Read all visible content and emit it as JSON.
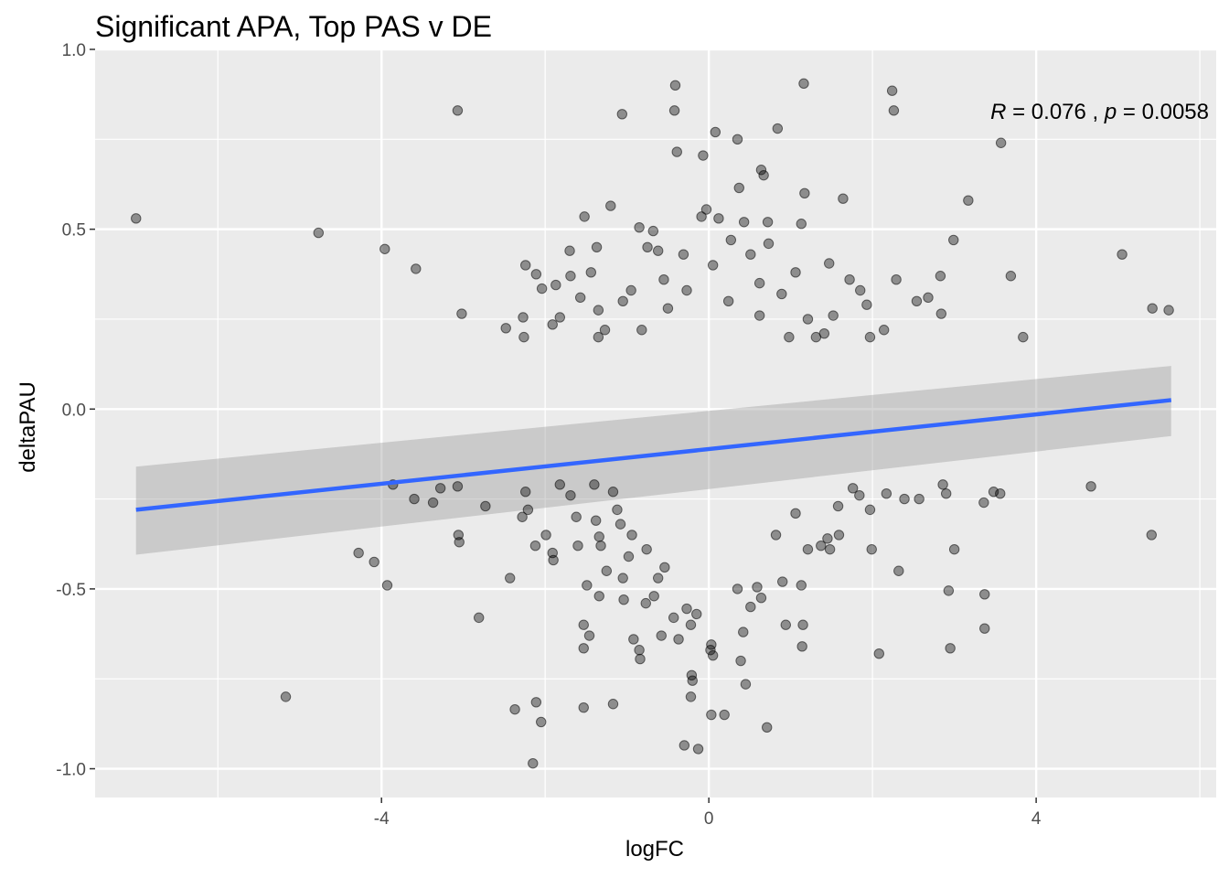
{
  "chart_data": {
    "type": "scatter",
    "title": "Significant APA, Top PAS v DE",
    "xlabel": "logFC",
    "ylabel": "deltaPAU",
    "xlim": [
      -7.5,
      6.2
    ],
    "ylim": [
      -1.08,
      1.0
    ],
    "x_ticks": [
      -4,
      0,
      4
    ],
    "x_tick_labels": [
      "-4",
      "0",
      "4"
    ],
    "y_ticks": [
      -1.0,
      -0.5,
      0.0,
      0.5,
      1.0
    ],
    "y_tick_labels": [
      "-1.0",
      "-0.5",
      "0.0",
      "0.5",
      "1.0"
    ],
    "grid": true,
    "panel_background": "#ebebeb",
    "point_color": "#000000",
    "point_alpha": 0.4,
    "fit": {
      "method": "linear regression with confidence band",
      "color": "#3366ff",
      "band_color": "#999999",
      "x_range": [
        -7.0,
        5.65
      ],
      "y_at_start": -0.28,
      "y_at_end": 0.025,
      "band_at_start": [
        -0.405,
        -0.16
      ],
      "band_at_end": [
        -0.075,
        0.12
      ]
    },
    "annotation": {
      "r_symbol": "R",
      "r_text": " = 0.076 , ",
      "p_symbol": "p",
      "p_text": " = 0.0058"
    },
    "points": [
      [
        -7.0,
        0.53
      ],
      [
        -4.77,
        0.49
      ],
      [
        -3.96,
        0.445
      ],
      [
        -3.58,
        0.39
      ],
      [
        -3.02,
        0.265
      ],
      [
        -3.07,
        0.83
      ],
      [
        -1.06,
        0.82
      ],
      [
        -0.41,
        0.9
      ],
      [
        -0.42,
        0.83
      ],
      [
        1.16,
        0.905
      ],
      [
        2.24,
        0.885
      ],
      [
        2.26,
        0.83
      ],
      [
        3.57,
        0.74
      ],
      [
        0.08,
        0.77
      ],
      [
        0.35,
        0.75
      ],
      [
        0.84,
        0.78
      ],
      [
        -0.39,
        0.715
      ],
      [
        -0.07,
        0.705
      ],
      [
        0.64,
        0.665
      ],
      [
        0.67,
        0.65
      ],
      [
        0.37,
        0.615
      ],
      [
        1.17,
        0.6
      ],
      [
        3.17,
        0.58
      ],
      [
        1.64,
        0.585
      ],
      [
        -1.2,
        0.565
      ],
      [
        -0.03,
        0.555
      ],
      [
        -0.09,
        0.535
      ],
      [
        0.12,
        0.53
      ],
      [
        -1.52,
        0.535
      ],
      [
        -0.85,
        0.505
      ],
      [
        -0.68,
        0.495
      ],
      [
        0.43,
        0.52
      ],
      [
        0.72,
        0.52
      ],
      [
        1.13,
        0.515
      ],
      [
        2.99,
        0.47
      ],
      [
        5.05,
        0.43
      ],
      [
        3.69,
        0.37
      ],
      [
        5.42,
        0.28
      ],
      [
        5.62,
        0.275
      ],
      [
        3.84,
        0.2
      ],
      [
        2.29,
        0.36
      ],
      [
        2.83,
        0.37
      ],
      [
        2.84,
        0.265
      ],
      [
        2.68,
        0.31
      ],
      [
        2.54,
        0.3
      ],
      [
        2.14,
        0.22
      ],
      [
        1.97,
        0.2
      ],
      [
        1.93,
        0.29
      ],
      [
        1.52,
        0.26
      ],
      [
        1.47,
        0.405
      ],
      [
        1.72,
        0.36
      ],
      [
        1.85,
        0.33
      ],
      [
        1.31,
        0.2
      ],
      [
        1.06,
        0.38
      ],
      [
        -1.7,
        0.44
      ],
      [
        -2.24,
        0.4
      ],
      [
        -2.11,
        0.375
      ],
      [
        -2.04,
        0.335
      ],
      [
        -2.48,
        0.225
      ],
      [
        -2.27,
        0.255
      ],
      [
        -2.26,
        0.2
      ],
      [
        -1.87,
        0.345
      ],
      [
        -1.82,
        0.255
      ],
      [
        -1.91,
        0.235
      ],
      [
        -1.69,
        0.37
      ],
      [
        -1.57,
        0.31
      ],
      [
        -1.44,
        0.38
      ],
      [
        -1.37,
        0.45
      ],
      [
        -1.35,
        0.2
      ],
      [
        -1.27,
        0.22
      ],
      [
        -1.35,
        0.275
      ],
      [
        -1.05,
        0.3
      ],
      [
        -0.95,
        0.33
      ],
      [
        -0.75,
        0.45
      ],
      [
        -0.62,
        0.44
      ],
      [
        -0.55,
        0.36
      ],
      [
        -0.31,
        0.43
      ],
      [
        0.05,
        0.4
      ],
      [
        0.27,
        0.47
      ],
      [
        0.51,
        0.43
      ],
      [
        0.73,
        0.46
      ],
      [
        0.62,
        0.35
      ],
      [
        0.89,
        0.32
      ],
      [
        -0.82,
        0.22
      ],
      [
        -0.5,
        0.28
      ],
      [
        -0.27,
        0.33
      ],
      [
        0.24,
        0.3
      ],
      [
        0.62,
        0.26
      ],
      [
        0.98,
        0.2
      ],
      [
        1.21,
        0.25
      ],
      [
        1.41,
        0.21
      ],
      [
        -5.17,
        -0.8
      ],
      [
        -4.28,
        -0.4
      ],
      [
        -4.09,
        -0.425
      ],
      [
        -3.93,
        -0.49
      ],
      [
        -3.86,
        -0.21
      ],
      [
        -3.6,
        -0.25
      ],
      [
        -3.37,
        -0.26
      ],
      [
        -3.28,
        -0.22
      ],
      [
        -3.06,
        -0.35
      ],
      [
        -3.05,
        -0.37
      ],
      [
        -3.07,
        -0.215
      ],
      [
        -2.73,
        -0.27
      ],
      [
        -2.81,
        -0.58
      ],
      [
        -2.43,
        -0.47
      ],
      [
        -2.37,
        -0.835
      ],
      [
        -2.24,
        -0.23
      ],
      [
        -2.28,
        -0.3
      ],
      [
        -2.21,
        -0.28
      ],
      [
        -2.12,
        -0.38
      ],
      [
        -1.99,
        -0.35
      ],
      [
        -1.91,
        -0.4
      ],
      [
        -1.9,
        -0.42
      ],
      [
        -2.11,
        -0.815
      ],
      [
        -2.05,
        -0.87
      ],
      [
        -2.15,
        -0.985
      ],
      [
        -1.82,
        -0.21
      ],
      [
        -1.69,
        -0.24
      ],
      [
        -1.62,
        -0.3
      ],
      [
        -1.6,
        -0.38
      ],
      [
        -1.49,
        -0.49
      ],
      [
        -1.53,
        -0.6
      ],
      [
        -1.53,
        -0.665
      ],
      [
        -1.46,
        -0.63
      ],
      [
        -1.53,
        -0.83
      ],
      [
        -1.4,
        -0.21
      ],
      [
        -1.38,
        -0.31
      ],
      [
        -1.34,
        -0.355
      ],
      [
        -1.32,
        -0.38
      ],
      [
        -1.34,
        -0.52
      ],
      [
        -1.25,
        -0.45
      ],
      [
        -1.17,
        -0.23
      ],
      [
        -1.12,
        -0.28
      ],
      [
        -1.08,
        -0.32
      ],
      [
        -1.05,
        -0.47
      ],
      [
        -1.17,
        -0.82
      ],
      [
        -1.04,
        -0.53
      ],
      [
        -0.98,
        -0.41
      ],
      [
        -0.94,
        -0.35
      ],
      [
        -0.92,
        -0.64
      ],
      [
        -0.85,
        -0.67
      ],
      [
        -0.84,
        -0.695
      ],
      [
        -0.77,
        -0.54
      ],
      [
        -0.67,
        -0.52
      ],
      [
        -0.62,
        -0.47
      ],
      [
        -0.58,
        -0.63
      ],
      [
        -0.54,
        -0.44
      ],
      [
        -0.43,
        -0.58
      ],
      [
        -0.37,
        -0.64
      ],
      [
        -0.27,
        -0.555
      ],
      [
        -0.22,
        -0.6
      ],
      [
        -0.21,
        -0.74
      ],
      [
        -0.2,
        -0.755
      ],
      [
        -0.22,
        -0.8
      ],
      [
        -0.15,
        -0.57
      ],
      [
        -0.3,
        -0.935
      ],
      [
        -0.13,
        -0.945
      ],
      [
        0.03,
        -0.655
      ],
      [
        0.02,
        -0.67
      ],
      [
        0.05,
        -0.685
      ],
      [
        0.03,
        -0.85
      ],
      [
        0.19,
        -0.85
      ],
      [
        0.35,
        -0.5
      ],
      [
        0.42,
        -0.62
      ],
      [
        0.39,
        -0.7
      ],
      [
        0.45,
        -0.765
      ],
      [
        0.51,
        -0.55
      ],
      [
        0.59,
        -0.495
      ],
      [
        0.64,
        -0.525
      ],
      [
        0.71,
        -0.885
      ],
      [
        0.9,
        -0.48
      ],
      [
        0.94,
        -0.6
      ],
      [
        1.15,
        -0.6
      ],
      [
        1.14,
        -0.66
      ],
      [
        1.13,
        -0.49
      ],
      [
        1.21,
        -0.39
      ],
      [
        1.37,
        -0.38
      ],
      [
        1.45,
        -0.36
      ],
      [
        1.48,
        -0.39
      ],
      [
        1.59,
        -0.35
      ],
      [
        1.76,
        -0.22
      ],
      [
        1.84,
        -0.24
      ],
      [
        1.97,
        -0.28
      ],
      [
        1.99,
        -0.39
      ],
      [
        2.08,
        -0.68
      ],
      [
        2.17,
        -0.235
      ],
      [
        2.39,
        -0.25
      ],
      [
        2.57,
        -0.25
      ],
      [
        2.86,
        -0.21
      ],
      [
        2.9,
        -0.235
      ],
      [
        2.93,
        -0.505
      ],
      [
        2.95,
        -0.665
      ],
      [
        3.0,
        -0.39
      ],
      [
        3.36,
        -0.26
      ],
      [
        3.37,
        -0.515
      ],
      [
        3.37,
        -0.61
      ],
      [
        3.48,
        -0.23
      ],
      [
        3.56,
        -0.235
      ],
      [
        4.67,
        -0.215
      ],
      [
        5.41,
        -0.35
      ],
      [
        2.32,
        -0.45
      ],
      [
        1.58,
        -0.27
      ],
      [
        1.06,
        -0.29
      ],
      [
        0.82,
        -0.35
      ],
      [
        -0.76,
        -0.39
      ]
    ]
  }
}
